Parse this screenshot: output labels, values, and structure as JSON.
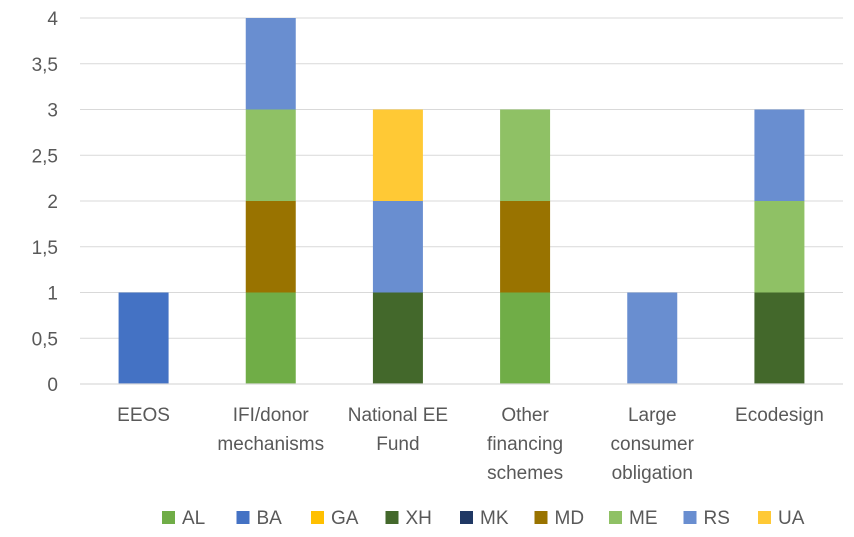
{
  "chart_data": {
    "type": "bar",
    "stacked": true,
    "categories": [
      [
        "EEOS"
      ],
      [
        "IFI/donor",
        "mechanisms"
      ],
      [
        "National EE",
        "Fund"
      ],
      [
        "Other",
        "financing",
        "schemes"
      ],
      [
        "Large",
        "consumer",
        "obligation"
      ],
      [
        "Ecodesign"
      ]
    ],
    "series": [
      {
        "name": "AL",
        "color": "#70ad47",
        "values": [
          0,
          1,
          0,
          1,
          0,
          0
        ]
      },
      {
        "name": "BA",
        "color": "#4472c4",
        "values": [
          1,
          0,
          0,
          0,
          0,
          0
        ]
      },
      {
        "name": "GA",
        "color": "#ffc000",
        "values": [
          0,
          0,
          0,
          0,
          0,
          0
        ]
      },
      {
        "name": "XH",
        "color": "#43682b",
        "values": [
          0,
          0,
          1,
          0,
          0,
          1
        ]
      },
      {
        "name": "MK",
        "color": "#203864",
        "values": [
          0,
          0,
          0,
          0,
          0,
          0
        ]
      },
      {
        "name": "MD",
        "color": "#997300",
        "values": [
          0,
          1,
          0,
          1,
          0,
          0
        ]
      },
      {
        "name": "ME",
        "color": "#8fc165",
        "values": [
          0,
          1,
          0,
          1,
          0,
          1
        ]
      },
      {
        "name": "RS",
        "color": "#698ed0",
        "values": [
          0,
          1,
          1,
          0,
          1,
          1
        ]
      },
      {
        "name": "UA",
        "color": "#ffc935",
        "values": [
          0,
          0,
          1,
          0,
          0,
          0
        ]
      }
    ],
    "ylim": [
      0,
      4
    ],
    "yticks": [
      "0",
      "0,5",
      "1",
      "1,5",
      "2",
      "2,5",
      "3",
      "3,5",
      "4"
    ],
    "ytick_values": [
      0,
      0.5,
      1,
      1.5,
      2,
      2.5,
      3,
      3.5,
      4
    ],
    "grid": true,
    "legend_position": "bottom",
    "title": "",
    "xlabel": "",
    "ylabel": ""
  }
}
